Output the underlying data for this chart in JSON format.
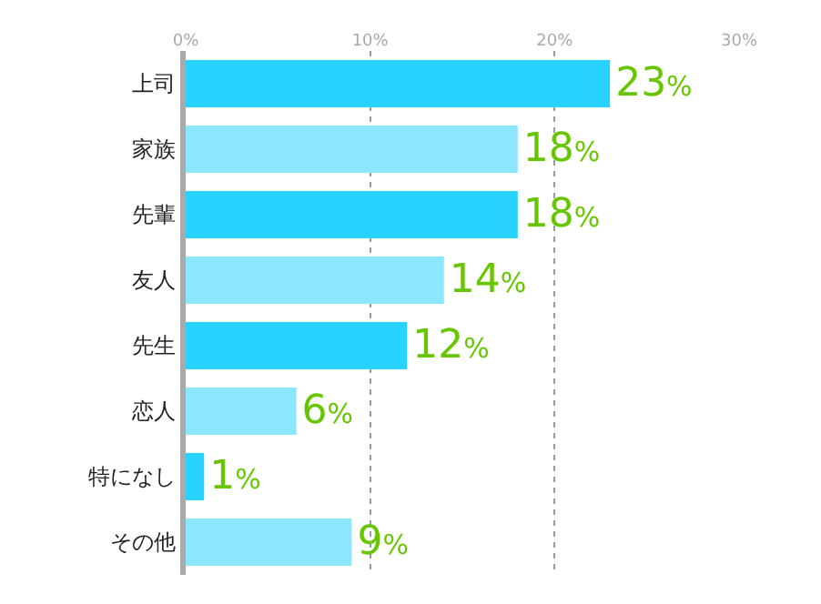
{
  "chart_data": {
    "type": "bar",
    "orientation": "horizontal",
    "categories": [
      "上司",
      "家族",
      "先輩",
      "友人",
      "先生",
      "恋人",
      "特になし",
      "その他"
    ],
    "values": [
      23,
      18,
      18,
      14,
      12,
      6,
      1,
      9
    ],
    "colors": [
      "#29d3ff",
      "#8ce6ff",
      "#29d3ff",
      "#8ce6ff",
      "#29d3ff",
      "#8ce6ff",
      "#29d3ff",
      "#8ce6ff"
    ],
    "value_labels": [
      "23%",
      "18%",
      "18%",
      "14%",
      "12%",
      "6%",
      "1%",
      "9%"
    ],
    "xlim": [
      0,
      30
    ],
    "xticks": [
      {
        "value": 0,
        "label": "0%"
      },
      {
        "value": 10,
        "label": "10%"
      },
      {
        "value": 20,
        "label": "20%"
      },
      {
        "value": 30,
        "label": "30%"
      }
    ],
    "grid": "x"
  }
}
